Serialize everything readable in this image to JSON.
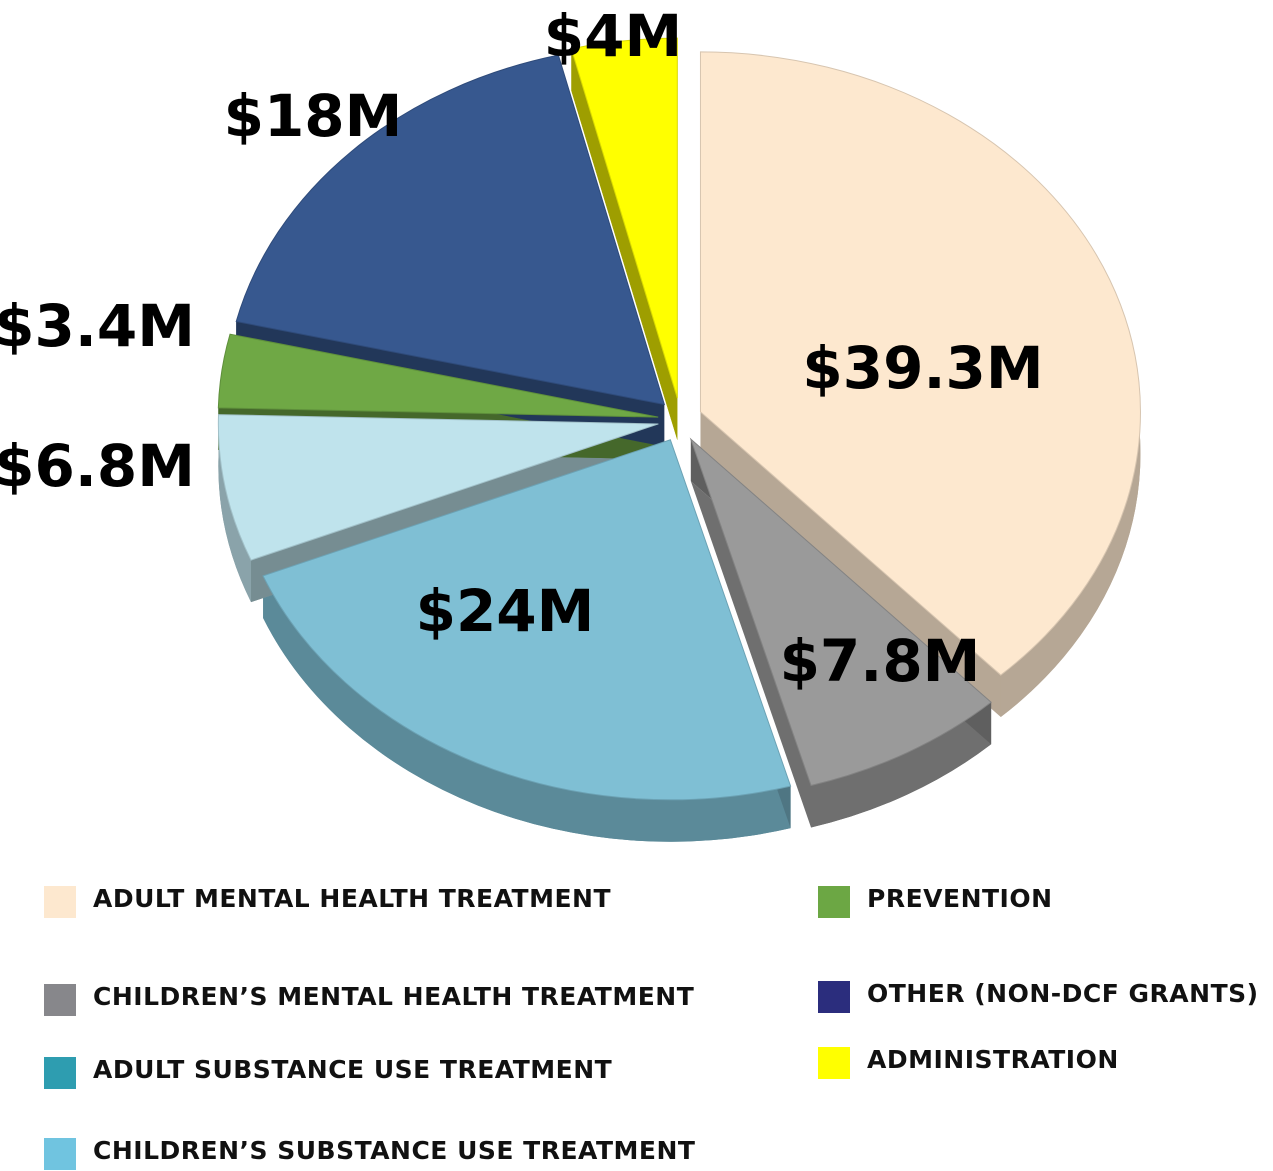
{
  "chart_data": {
    "type": "pie",
    "categories": [
      "ADULT MENTAL HEALTH TREATMENT",
      "CHILDREN’S MENTAL HEALTH TREATMENT",
      "ADULT SUBSTANCE USE TREATMENT",
      "CHILDREN’S SUBSTANCE USE TREATMENT",
      "PREVENTION",
      "OTHER (NON-DCF GRANTS)",
      "ADMINISTRATION"
    ],
    "values": [
      39.3,
      7.8,
      24,
      6.8,
      3.4,
      18,
      4
    ],
    "value_labels": [
      "$39.3M",
      "$7.8M",
      "$24M",
      "$6.8M",
      "$3.4M",
      "$18M",
      "$4M"
    ],
    "colors": [
      "#fde8cf",
      "#9a9a9a",
      "#7fbfd4",
      "#bfe3ec",
      "#6fa845",
      "#37588f",
      "#ffff00"
    ],
    "legend_colors": [
      "#fde8cf",
      "#87878b",
      "#2e9db0",
      "#70c4e0",
      "#6ca744",
      "#2b2d7d",
      "#ffff00"
    ]
  }
}
